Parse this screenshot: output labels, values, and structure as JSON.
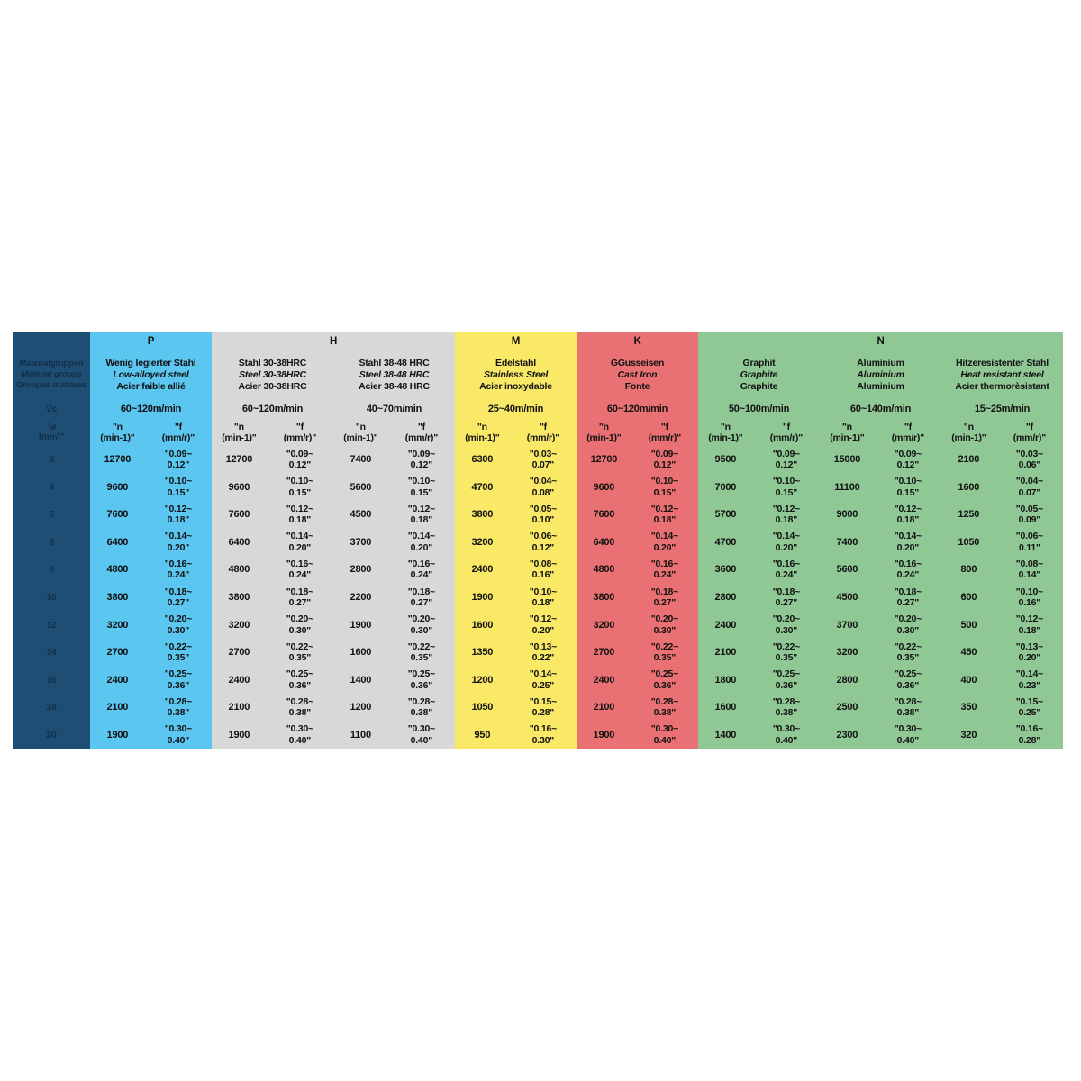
{
  "colors": {
    "page_bg": "#FFFFFF",
    "corner_bg": "#1F4E74",
    "corner_text": "#12304A",
    "group_p_bg": "#5BC6F0",
    "group_h_bg": "#D8D8D8",
    "group_m_bg": "#F9E967",
    "group_k_bg": "#E97173",
    "group_n_bg": "#8FC795",
    "data_text": "#111111"
  },
  "corner": {
    "label_lines": [
      "Materialgruppen",
      "Material groups",
      "Groupes matières"
    ],
    "vc_label": "Vc",
    "diameter_label": "\"ø\n(mm)\""
  },
  "col_headers": {
    "n": "\"n\n(min-1)\"",
    "f": "\"f\n(mm/r)\""
  },
  "diameters": [
    "3",
    "4",
    "5",
    "6",
    "8",
    "10",
    "12",
    "14",
    "16",
    "18",
    "20"
  ],
  "groups": [
    {
      "letter": "P",
      "bg": "#5BC6F0",
      "materials": [
        {
          "name_de": "Wenig legierter Stahl",
          "name_en": "Low-alloyed steel",
          "name_fr": "Acier faible allié",
          "speed": "60~120m/min",
          "n": [
            "12700",
            "9600",
            "7600",
            "6400",
            "4800",
            "3800",
            "3200",
            "2700",
            "2400",
            "2100",
            "1900"
          ],
          "f": [
            "\"0.09~\n0.12\"",
            "\"0.10~\n0.15\"",
            "\"0.12~\n0.18\"",
            "\"0.14~\n0.20\"",
            "\"0.16~\n0.24\"",
            "\"0.18~\n0.27\"",
            "\"0.20~\n0.30\"",
            "\"0.22~\n0.35\"",
            "\"0.25~\n0.36\"",
            "\"0.28~\n0.38\"",
            "\"0.30~\n0.40\""
          ]
        }
      ]
    },
    {
      "letter": "H",
      "bg": "#D8D8D8",
      "materials": [
        {
          "name_de": "Stahl 30-38HRC",
          "name_en": "Steel 30-38HRC",
          "name_fr": "Acier 30-38HRC",
          "speed": "60~120m/min",
          "n": [
            "12700",
            "9600",
            "7600",
            "6400",
            "4800",
            "3800",
            "3200",
            "2700",
            "2400",
            "2100",
            "1900"
          ],
          "f": [
            "\"0.09~\n0.12\"",
            "\"0.10~\n0.15\"",
            "\"0.12~\n0.18\"",
            "\"0.14~\n0.20\"",
            "\"0.16~\n0.24\"",
            "\"0.18~\n0.27\"",
            "\"0.20~\n0.30\"",
            "\"0.22~\n0.35\"",
            "\"0.25~\n0.36\"",
            "\"0.28~\n0.38\"",
            "\"0.30~\n0.40\""
          ]
        },
        {
          "name_de": "Stahl 38-48 HRC",
          "name_en": "Steel 38-48 HRC",
          "name_fr": "Acier 38-48 HRC",
          "speed": "40~70m/min",
          "n": [
            "7400",
            "5600",
            "4500",
            "3700",
            "2800",
            "2200",
            "1900",
            "1600",
            "1400",
            "1200",
            "1100"
          ],
          "f": [
            "\"0.09~\n0.12\"",
            "\"0.10~\n0.15\"",
            "\"0.12~\n0.18\"",
            "\"0.14~\n0.20\"",
            "\"0.16~\n0.24\"",
            "\"0.18~\n0.27\"",
            "\"0.20~\n0.30\"",
            "\"0.22~\n0.35\"",
            "\"0.25~\n0.36\"",
            "\"0.28~\n0.38\"",
            "\"0.30~\n0.40\""
          ]
        }
      ]
    },
    {
      "letter": "M",
      "bg": "#F9E967",
      "materials": [
        {
          "name_de": "Edelstahl",
          "name_en": "Stainless Steel",
          "name_fr": "Acier inoxydable",
          "speed": "25~40m/min",
          "n": [
            "6300",
            "4700",
            "3800",
            "3200",
            "2400",
            "1900",
            "1600",
            "1350",
            "1200",
            "1050",
            "950"
          ],
          "f": [
            "\"0.03~\n0.07\"",
            "\"0.04~\n0.08\"",
            "\"0.05~\n0.10\"",
            "\"0.06~\n0.12\"",
            "\"0.08~\n0.16\"",
            "\"0.10~\n0.18\"",
            "\"0.12~\n0.20\"",
            "\"0.13~\n0.22\"",
            "\"0.14~\n0.25\"",
            "\"0.15~\n0.28\"",
            "\"0.16~\n0.30\""
          ]
        }
      ]
    },
    {
      "letter": "K",
      "bg": "#E97173",
      "materials": [
        {
          "name_de": "GGusseisen",
          "name_en": "Cast Iron",
          "name_fr": "Fonte",
          "speed": "60~120m/min",
          "n": [
            "12700",
            "9600",
            "7600",
            "6400",
            "4800",
            "3800",
            "3200",
            "2700",
            "2400",
            "2100",
            "1900"
          ],
          "f": [
            "\"0.09~\n0.12\"",
            "\"0.10~\n0.15\"",
            "\"0.12~\n0.18\"",
            "\"0.14~\n0.20\"",
            "\"0.16~\n0.24\"",
            "\"0.18~\n0.27\"",
            "\"0.20~\n0.30\"",
            "\"0.22~\n0.35\"",
            "\"0.25~\n0.36\"",
            "\"0.28~\n0.38\"",
            "\"0.30~\n0.40\""
          ]
        }
      ]
    },
    {
      "letter": "N",
      "bg": "#8FC795",
      "materials": [
        {
          "name_de": "Graphit",
          "name_en": "Graphite",
          "name_fr": "Graphite",
          "speed": "50~100m/min",
          "n": [
            "9500",
            "7000",
            "5700",
            "4700",
            "3600",
            "2800",
            "2400",
            "2100",
            "1800",
            "1600",
            "1400"
          ],
          "f": [
            "\"0.09~\n0.12\"",
            "\"0.10~\n0.15\"",
            "\"0.12~\n0.18\"",
            "\"0.14~\n0.20\"",
            "\"0.16~\n0.24\"",
            "\"0.18~\n0.27\"",
            "\"0.20~\n0.30\"",
            "\"0.22~\n0.35\"",
            "\"0.25~\n0.36\"",
            "\"0.28~\n0.38\"",
            "\"0.30~\n0.40\""
          ]
        },
        {
          "name_de": "Aluminium",
          "name_en": "Aluminium",
          "name_fr": "Aluminium",
          "speed": "60~140m/min",
          "n": [
            "15000",
            "11100",
            "9000",
            "7400",
            "5600",
            "4500",
            "3700",
            "3200",
            "2800",
            "2500",
            "2300"
          ],
          "f": [
            "\"0.09~\n0.12\"",
            "\"0.10~\n0.15\"",
            "\"0.12~\n0.18\"",
            "\"0.14~\n0.20\"",
            "\"0.16~\n0.24\"",
            "\"0.18~\n0.27\"",
            "\"0.20~\n0.30\"",
            "\"0.22~\n0.35\"",
            "\"0.25~\n0.36\"",
            "\"0.28~\n0.38\"",
            "\"0.30~\n0.40\""
          ]
        },
        {
          "name_de": "Hitzeresistenter Stahl",
          "name_en": "Heat resistant steel",
          "name_fr": "Acier thermorèsistant",
          "speed": "15~25m/min",
          "n": [
            "2100",
            "1600",
            "1250",
            "1050",
            "800",
            "600",
            "500",
            "450",
            "400",
            "350",
            "320"
          ],
          "f": [
            "\"0.03~\n0.06\"",
            "\"0.04~\n0.07\"",
            "\"0.05~\n0.09\"",
            "\"0.06~\n0.11\"",
            "\"0.08~\n0.14\"",
            "\"0.10~\n0.16\"",
            "\"0.12~\n0.18\"",
            "\"0.13~\n0.20\"",
            "\"0.14~\n0.23\"",
            "\"0.15~\n0.25\"",
            "\"0.16~\n0.28\""
          ]
        }
      ]
    }
  ]
}
